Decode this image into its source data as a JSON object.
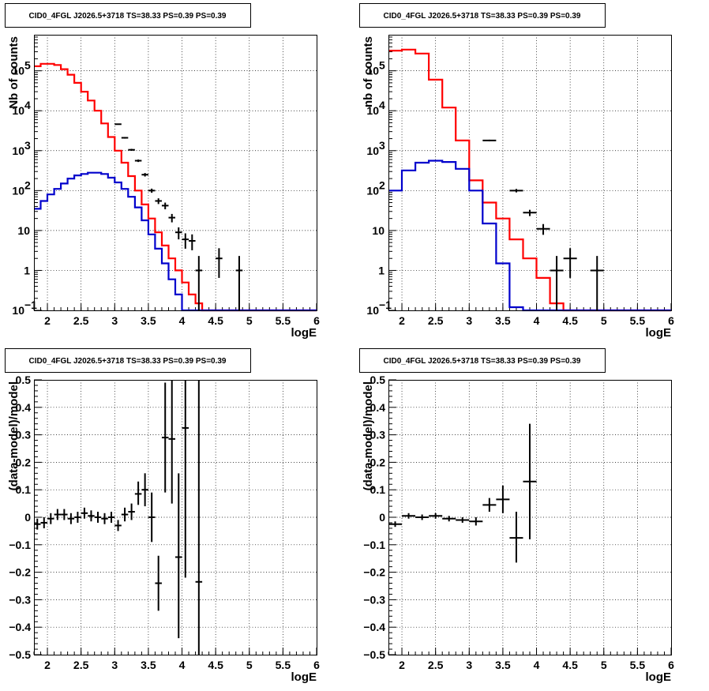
{
  "colors": {
    "total_model": "#ff0000",
    "source_model": "#0000cc",
    "data": "#000000",
    "grid": "#000000"
  },
  "chart_data": [
    {
      "type": "line",
      "title": "CID0_4FGL J2026.5+3718 TS=38.33 PS=0.39 PS=0.39",
      "xlabel": "logE",
      "ylabel": "Nb of counts",
      "xlim": [
        1.8,
        6.0
      ],
      "ylim": [
        0.1,
        800000
      ],
      "yscale": "log",
      "grid": true,
      "xticks": [
        "2",
        "2.5",
        "3",
        "3.5",
        "4",
        "4.5",
        "5",
        "5.5",
        "6"
      ],
      "yticks": [
        {
          "v": 0.1,
          "base": "10",
          "exp": "−1"
        },
        {
          "v": 1,
          "base": "1",
          "exp": ""
        },
        {
          "v": 10,
          "base": "10",
          "exp": ""
        },
        {
          "v": 100,
          "base": "10",
          "exp": "2"
        },
        {
          "v": 1000,
          "base": "10",
          "exp": "3"
        },
        {
          "v": 10000,
          "base": "10",
          "exp": "4"
        },
        {
          "v": 100000,
          "base": "10",
          "exp": "5"
        }
      ],
      "series": [
        {
          "role": "total_model",
          "bins_from": 1.8,
          "bin_width": 0.1,
          "values": [
            130000,
            150000,
            150000,
            140000,
            110000,
            80000,
            50000,
            30000,
            18000,
            10000,
            4800,
            2200,
            1000,
            500,
            230,
            100,
            45,
            20,
            9,
            4.2,
            2.0,
            1.0,
            0.5,
            0.25,
            0.15,
            0.1,
            0.1,
            0.1,
            0.1,
            0.1,
            0.1,
            0.1,
            0.1,
            0.1,
            0.1,
            0.1,
            0.1,
            0.1,
            0.1,
            0.1,
            0.1,
            0.1
          ]
        },
        {
          "role": "source_model",
          "bins_from": 1.8,
          "bin_width": 0.1,
          "values": [
            35,
            55,
            80,
            110,
            150,
            200,
            240,
            260,
            280,
            280,
            260,
            210,
            160,
            110,
            70,
            38,
            18,
            8,
            3.5,
            1.5,
            0.6,
            0.25,
            0.1,
            0.1,
            0.1,
            0.1,
            0.1,
            0.1,
            0.1,
            0.1,
            0.1,
            0.1,
            0.1,
            0.1,
            0.1,
            0.1,
            0.1,
            0.1,
            0.1,
            0.1,
            0.1,
            0.1
          ]
        },
        {
          "role": "data",
          "points": [
            {
              "x": 3.05,
              "y": 4600,
              "xerr": 0.05,
              "ylo": 4450,
              "yhi": 4750
            },
            {
              "x": 3.15,
              "y": 2100,
              "xerr": 0.05,
              "ylo": 2000,
              "yhi": 2200
            },
            {
              "x": 3.25,
              "y": 1050,
              "xerr": 0.05,
              "ylo": 990,
              "yhi": 1110
            },
            {
              "x": 3.35,
              "y": 560,
              "xerr": 0.05,
              "ylo": 520,
              "yhi": 600
            },
            {
              "x": 3.45,
              "y": 250,
              "xerr": 0.05,
              "ylo": 225,
              "yhi": 275
            },
            {
              "x": 3.55,
              "y": 100,
              "xerr": 0.05,
              "ylo": 88,
              "yhi": 112
            },
            {
              "x": 3.65,
              "y": 55,
              "xerr": 0.05,
              "ylo": 46,
              "yhi": 64
            },
            {
              "x": 3.75,
              "y": 42,
              "xerr": 0.05,
              "ylo": 34,
              "yhi": 50
            },
            {
              "x": 3.85,
              "y": 21,
              "xerr": 0.05,
              "ylo": 16,
              "yhi": 26
            },
            {
              "x": 3.95,
              "y": 9,
              "xerr": 0.05,
              "ylo": 6,
              "yhi": 12
            },
            {
              "x": 4.05,
              "y": 6,
              "xerr": 0.05,
              "ylo": 3.5,
              "yhi": 8.5
            },
            {
              "x": 4.15,
              "y": 5.5,
              "xerr": 0.05,
              "ylo": 3.2,
              "yhi": 8
            },
            {
              "x": 4.25,
              "y": 1,
              "xerr": 0.05,
              "ylo": 0.1,
              "yhi": 2.3
            },
            {
              "x": 4.55,
              "y": 2,
              "xerr": 0.05,
              "ylo": 0.65,
              "yhi": 3.6
            },
            {
              "x": 4.85,
              "y": 1,
              "xerr": 0.05,
              "ylo": 0.1,
              "yhi": 2.3
            }
          ]
        }
      ]
    },
    {
      "type": "line",
      "title": "CID0_4FGL J2026.5+3718 TS=38.33 PS=0.39 PS=0.39",
      "xlabel": "logE",
      "ylabel": "nb of counts",
      "xlim": [
        1.8,
        6.0
      ],
      "ylim": [
        0.1,
        800000
      ],
      "yscale": "log",
      "grid": true,
      "xticks": [
        "2",
        "2.5",
        "3",
        "3.5",
        "4",
        "4.5",
        "5",
        "5.5",
        "6"
      ],
      "yticks": [
        {
          "v": 0.1,
          "base": "10",
          "exp": "−1"
        },
        {
          "v": 1,
          "base": "1",
          "exp": ""
        },
        {
          "v": 10,
          "base": "10",
          "exp": ""
        },
        {
          "v": 100,
          "base": "10",
          "exp": "2"
        },
        {
          "v": 1000,
          "base": "10",
          "exp": "3"
        },
        {
          "v": 10000,
          "base": "10",
          "exp": "4"
        },
        {
          "v": 100000,
          "base": "10",
          "exp": "5"
        }
      ],
      "series": [
        {
          "role": "total_model",
          "bins_from": 1.8,
          "bin_width": 0.2,
          "values": [
            320000,
            340000,
            270000,
            60000,
            12000,
            1800,
            180,
            50,
            20,
            6,
            2,
            0.65,
            0.15,
            0.1,
            0.1,
            0.1,
            0.1,
            0.1,
            0.1,
            0.1,
            0.1
          ]
        },
        {
          "role": "source_model",
          "bins_from": 1.8,
          "bin_width": 0.2,
          "values": [
            100,
            320,
            500,
            560,
            520,
            350,
            100,
            15,
            1.5,
            0.12,
            0.1,
            0.1,
            0.1,
            0.1,
            0.1,
            0.1,
            0.1,
            0.1,
            0.1,
            0.1,
            0.1
          ]
        },
        {
          "role": "data",
          "points": [
            {
              "x": 3.3,
              "y": 1800,
              "xerr": 0.1,
              "ylo": 1720,
              "yhi": 1880
            },
            {
              "x": 3.7,
              "y": 100,
              "xerr": 0.1,
              "ylo": 90,
              "yhi": 110
            },
            {
              "x": 3.9,
              "y": 28,
              "xerr": 0.1,
              "ylo": 23,
              "yhi": 33
            },
            {
              "x": 4.1,
              "y": 11,
              "xerr": 0.1,
              "ylo": 7.8,
              "yhi": 14.5
            },
            {
              "x": 4.3,
              "y": 1,
              "xerr": 0.1,
              "ylo": 0.1,
              "yhi": 2.3
            },
            {
              "x": 4.5,
              "y": 2,
              "xerr": 0.1,
              "ylo": 0.65,
              "yhi": 3.6
            },
            {
              "x": 4.9,
              "y": 1,
              "xerr": 0.1,
              "ylo": 0.1,
              "yhi": 2.3
            }
          ]
        }
      ]
    },
    {
      "type": "scatter",
      "title": "CID0_4FGL J2026.5+3718 TS=38.33 PS=0.39 PS=0.39",
      "xlabel": "logE",
      "ylabel": "(data-model)/model",
      "xlim": [
        1.8,
        6.0
      ],
      "ylim": [
        -0.5,
        0.5
      ],
      "yscale": "linear",
      "grid": true,
      "xticks": [
        "2",
        "2.5",
        "3",
        "3.5",
        "4",
        "4.5",
        "5",
        "5.5",
        "6"
      ],
      "yticks_linear": [
        "−0.5",
        "−0.4",
        "−0.3",
        "−0.2",
        "−0.1",
        "0",
        "0.1",
        "0.2",
        "0.3",
        "0.4",
        "0.5"
      ],
      "series": [
        {
          "role": "data",
          "points": [
            {
              "x": 1.85,
              "y": -0.025,
              "xerr": 0.05,
              "ylo": -0.045,
              "yhi": -0.005
            },
            {
              "x": 1.95,
              "y": -0.02,
              "xerr": 0.05,
              "ylo": -0.04,
              "yhi": 0.0
            },
            {
              "x": 2.05,
              "y": -0.005,
              "xerr": 0.05,
              "ylo": -0.025,
              "yhi": 0.015
            },
            {
              "x": 2.15,
              "y": 0.01,
              "xerr": 0.05,
              "ylo": -0.01,
              "yhi": 0.03
            },
            {
              "x": 2.25,
              "y": 0.01,
              "xerr": 0.05,
              "ylo": -0.01,
              "yhi": 0.03
            },
            {
              "x": 2.35,
              "y": -0.005,
              "xerr": 0.05,
              "ylo": -0.025,
              "yhi": 0.015
            },
            {
              "x": 2.45,
              "y": 0.0,
              "xerr": 0.05,
              "ylo": -0.02,
              "yhi": 0.02
            },
            {
              "x": 2.55,
              "y": 0.015,
              "xerr": 0.05,
              "ylo": -0.005,
              "yhi": 0.035
            },
            {
              "x": 2.65,
              "y": 0.005,
              "xerr": 0.05,
              "ylo": -0.015,
              "yhi": 0.025
            },
            {
              "x": 2.75,
              "y": 0.0,
              "xerr": 0.05,
              "ylo": -0.02,
              "yhi": 0.02
            },
            {
              "x": 2.85,
              "y": -0.005,
              "xerr": 0.05,
              "ylo": -0.025,
              "yhi": 0.015
            },
            {
              "x": 2.95,
              "y": 0.0,
              "xerr": 0.05,
              "ylo": -0.02,
              "yhi": 0.02
            },
            {
              "x": 3.05,
              "y": -0.03,
              "xerr": 0.05,
              "ylo": -0.05,
              "yhi": -0.01
            },
            {
              "x": 3.15,
              "y": 0.01,
              "xerr": 0.05,
              "ylo": -0.015,
              "yhi": 0.035
            },
            {
              "x": 3.25,
              "y": 0.02,
              "xerr": 0.05,
              "ylo": -0.01,
              "yhi": 0.05
            },
            {
              "x": 3.35,
              "y": 0.085,
              "xerr": 0.05,
              "ylo": 0.045,
              "yhi": 0.13
            },
            {
              "x": 3.45,
              "y": 0.1,
              "xerr": 0.05,
              "ylo": 0.04,
              "yhi": 0.16
            },
            {
              "x": 3.55,
              "y": 0.0,
              "xerr": 0.05,
              "ylo": -0.09,
              "yhi": 0.09
            },
            {
              "x": 3.65,
              "y": -0.24,
              "xerr": 0.05,
              "ylo": -0.34,
              "yhi": -0.14
            },
            {
              "x": 3.75,
              "y": 0.29,
              "xerr": 0.05,
              "ylo": 0.09,
              "yhi": 0.49
            },
            {
              "x": 3.85,
              "y": 0.285,
              "xerr": 0.05,
              "ylo": 0.05,
              "yhi": 0.5
            },
            {
              "x": 3.95,
              "y": -0.145,
              "xerr": 0.05,
              "ylo": -0.44,
              "yhi": 0.16
            },
            {
              "x": 4.05,
              "y": 0.325,
              "xerr": 0.05,
              "ylo": -0.22,
              "yhi": 0.5
            },
            {
              "x": 4.25,
              "y": -0.235,
              "xerr": 0.05,
              "ylo": -0.5,
              "yhi": 0.5
            }
          ]
        }
      ]
    },
    {
      "type": "scatter",
      "title": "CID0_4FGL J2026.5+3718 TS=38.33 PS=0.39 PS=0.39",
      "xlabel": "logE",
      "ylabel": "(data-model)/model",
      "xlim": [
        1.8,
        6.0
      ],
      "ylim": [
        -0.5,
        0.5
      ],
      "yscale": "linear",
      "grid": true,
      "xticks": [
        "2",
        "2.5",
        "3",
        "3.5",
        "4",
        "4.5",
        "5",
        "5.5",
        "6"
      ],
      "yticks_linear": [
        "−0.5",
        "−0.4",
        "−0.3",
        "−0.2",
        "−0.1",
        "0",
        "0.1",
        "0.2",
        "0.3",
        "0.4",
        "0.5"
      ],
      "series": [
        {
          "role": "data",
          "points": [
            {
              "x": 1.9,
              "y": -0.025,
              "xerr": 0.1,
              "ylo": -0.035,
              "yhi": -0.015
            },
            {
              "x": 2.1,
              "y": 0.005,
              "xerr": 0.1,
              "ylo": -0.005,
              "yhi": 0.015
            },
            {
              "x": 2.3,
              "y": 0.0,
              "xerr": 0.1,
              "ylo": -0.01,
              "yhi": 0.01
            },
            {
              "x": 2.5,
              "y": 0.005,
              "xerr": 0.1,
              "ylo": -0.005,
              "yhi": 0.015
            },
            {
              "x": 2.7,
              "y": -0.005,
              "xerr": 0.1,
              "ylo": -0.015,
              "yhi": 0.005
            },
            {
              "x": 2.9,
              "y": -0.01,
              "xerr": 0.1,
              "ylo": -0.02,
              "yhi": 0.0
            },
            {
              "x": 3.1,
              "y": -0.015,
              "xerr": 0.1,
              "ylo": -0.03,
              "yhi": 0.0
            },
            {
              "x": 3.3,
              "y": 0.045,
              "xerr": 0.1,
              "ylo": 0.02,
              "yhi": 0.07
            },
            {
              "x": 3.5,
              "y": 0.065,
              "xerr": 0.1,
              "ylo": 0.015,
              "yhi": 0.115
            },
            {
              "x": 3.7,
              "y": -0.075,
              "xerr": 0.1,
              "ylo": -0.165,
              "yhi": 0.02
            },
            {
              "x": 3.9,
              "y": 0.13,
              "xerr": 0.1,
              "ylo": -0.08,
              "yhi": 0.34
            }
          ]
        }
      ]
    }
  ]
}
